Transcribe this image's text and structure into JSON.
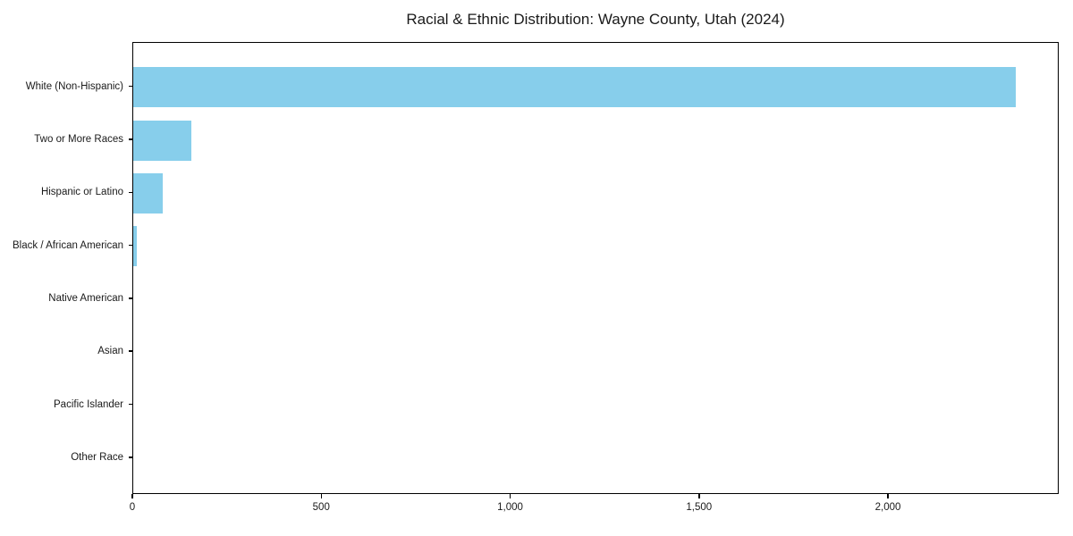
{
  "chart_data": {
    "type": "bar",
    "orientation": "horizontal",
    "title": "Racial & Ethnic Distribution: Wayne County, Utah (2024)",
    "categories": [
      "White (Non-Hispanic)",
      "Two or More Races",
      "Hispanic or Latino",
      "Black / African American",
      "Native American",
      "Asian",
      "Pacific Islander",
      "Other Race"
    ],
    "values": [
      2335,
      153,
      79,
      10,
      0,
      0,
      0,
      0
    ],
    "xlabel": "",
    "ylabel": "",
    "xlim": [
      0,
      2452
    ],
    "xticks": [
      0,
      500,
      1000,
      1500,
      2000
    ],
    "xtick_labels": [
      "0",
      "500",
      "1,000",
      "1,500",
      "2,000"
    ],
    "bar_color": "#87CEEB",
    "axis_color": "#000000",
    "text_color": "#1a1a1a",
    "background_color": "#ffffff",
    "grid": false,
    "legend": null
  }
}
